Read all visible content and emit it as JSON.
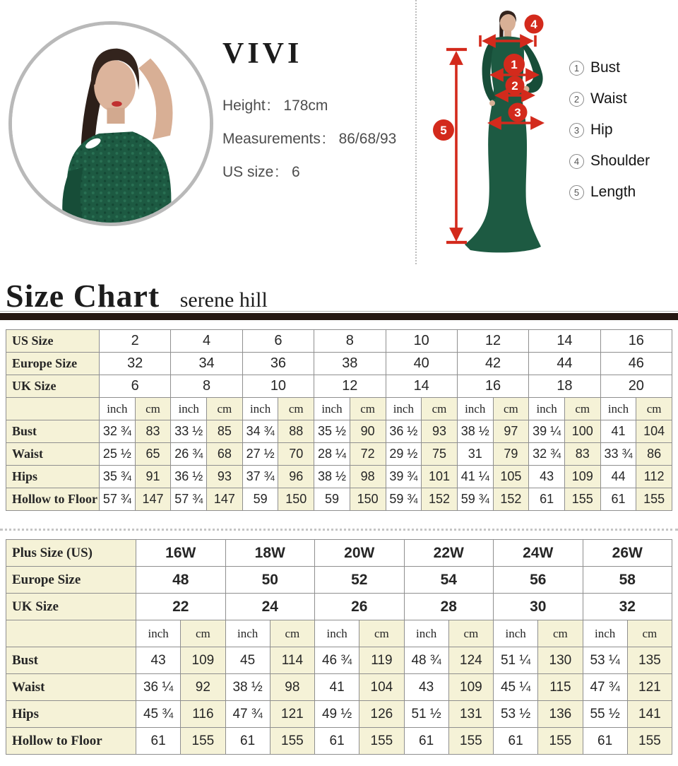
{
  "hero": {
    "brand": "VIVI",
    "stats": [
      {
        "label": "Height",
        "value": "178cm"
      },
      {
        "label": "Measurements",
        "value": "86/68/93"
      },
      {
        "label": "US size",
        "value": "6"
      }
    ],
    "legend": [
      {
        "num": "1",
        "label": "Bust"
      },
      {
        "num": "2",
        "label": "Waist"
      },
      {
        "num": "3",
        "label": "Hip"
      },
      {
        "num": "4",
        "label": "Shoulder"
      },
      {
        "num": "5",
        "label": "Length"
      }
    ]
  },
  "section": {
    "title": "Size Chart",
    "subtitle": "serene hill"
  },
  "colors": {
    "accent_red": "#d32a1c",
    "dress_green": "#1d5a42",
    "cell_cream": "#f5f2d7",
    "rule_dark": "#241712",
    "border_gray": "#8f8f8f"
  },
  "tables": [
    {
      "name": "standard-sizes",
      "header_rows": [
        {
          "label": "US Size",
          "values": [
            "2",
            "4",
            "6",
            "8",
            "10",
            "12",
            "14",
            "16"
          ]
        },
        {
          "label": "Europe Size",
          "values": [
            "32",
            "34",
            "36",
            "38",
            "40",
            "42",
            "44",
            "46"
          ]
        },
        {
          "label": "UK Size",
          "values": [
            "6",
            "8",
            "10",
            "12",
            "14",
            "16",
            "18",
            "20"
          ]
        }
      ],
      "unit_labels": [
        "inch",
        "cm"
      ],
      "rows": [
        {
          "label": "Bust",
          "inch": [
            "32 ¾",
            "33 ½",
            "34 ¾",
            "35 ½",
            "36 ½",
            "38 ½",
            "39 ¼",
            "41"
          ],
          "cm": [
            "83",
            "85",
            "88",
            "90",
            "93",
            "97",
            "100",
            "104"
          ]
        },
        {
          "label": "Waist",
          "inch": [
            "25 ½",
            "26 ¾",
            "27 ½",
            "28 ¼",
            "29 ½",
            "31",
            "32 ¾",
            "33 ¾"
          ],
          "cm": [
            "65",
            "68",
            "70",
            "72",
            "75",
            "79",
            "83",
            "86"
          ]
        },
        {
          "label": "Hips",
          "inch": [
            "35 ¾",
            "36 ½",
            "37 ¾",
            "38 ½",
            "39 ¾",
            "41 ¼",
            "43",
            "44"
          ],
          "cm": [
            "91",
            "93",
            "96",
            "98",
            "101",
            "105",
            "109",
            "112"
          ]
        },
        {
          "label": "Hollow to Floor",
          "inch": [
            "57 ¾",
            "57 ¾",
            "59",
            "59",
            "59 ¾",
            "59 ¾",
            "61",
            "61"
          ],
          "cm": [
            "147",
            "147",
            "150",
            "150",
            "152",
            "152",
            "155",
            "155"
          ]
        }
      ]
    },
    {
      "name": "plus-sizes",
      "header_rows": [
        {
          "label": "Plus Size (US)",
          "values": [
            "16W",
            "18W",
            "20W",
            "22W",
            "24W",
            "26W"
          ]
        },
        {
          "label": "Europe Size",
          "values": [
            "48",
            "50",
            "52",
            "54",
            "56",
            "58"
          ]
        },
        {
          "label": "UK Size",
          "values": [
            "22",
            "24",
            "26",
            "28",
            "30",
            "32"
          ]
        }
      ],
      "unit_labels": [
        "inch",
        "cm"
      ],
      "rows": [
        {
          "label": "Bust",
          "inch": [
            "43",
            "45",
            "46 ¾",
            "48 ¾",
            "51 ¼",
            "53 ¼"
          ],
          "cm": [
            "109",
            "114",
            "119",
            "124",
            "130",
            "135"
          ]
        },
        {
          "label": "Waist",
          "inch": [
            "36 ¼",
            "38 ½",
            "41",
            "43",
            "45 ¼",
            "47 ¾"
          ],
          "cm": [
            "92",
            "98",
            "104",
            "109",
            "115",
            "121"
          ]
        },
        {
          "label": "Hips",
          "inch": [
            "45 ¾",
            "47 ¾",
            "49 ½",
            "51 ½",
            "53 ½",
            "55 ½"
          ],
          "cm": [
            "116",
            "121",
            "126",
            "131",
            "136",
            "141"
          ]
        },
        {
          "label": "Hollow to Floor",
          "inch": [
            "61",
            "61",
            "61",
            "61",
            "61",
            "61"
          ],
          "cm": [
            "155",
            "155",
            "155",
            "155",
            "155",
            "155"
          ]
        }
      ]
    }
  ]
}
